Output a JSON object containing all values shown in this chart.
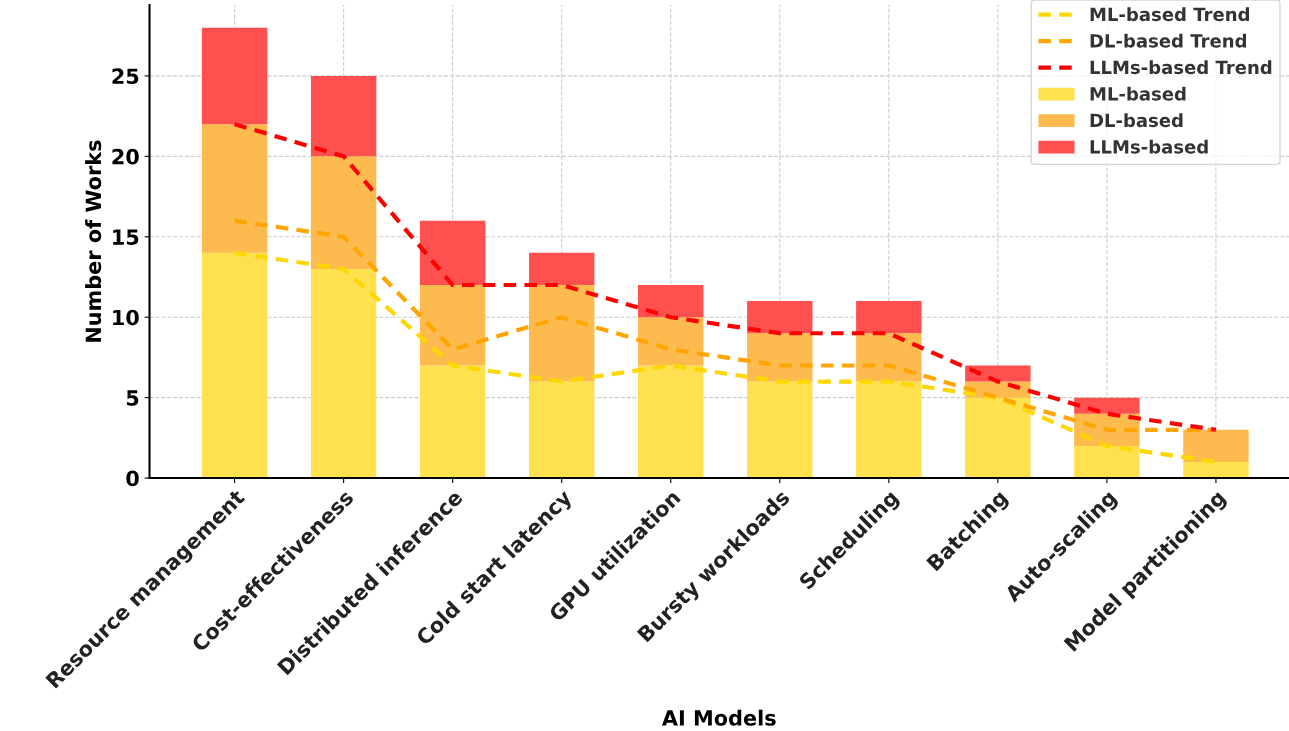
{
  "chart_data": {
    "type": "bar",
    "stacked": true,
    "xlabel": "AI Models",
    "ylabel": "Number of Works",
    "categories": [
      "Resource management",
      "Cost-effectiveness",
      "Distributed inference",
      "Cold start latency",
      "GPU utilization",
      "Bursty workloads",
      "Scheduling",
      "Batching",
      "Auto-scaling",
      "Model partitioning"
    ],
    "series": [
      {
        "name": "ML-based",
        "color": "#ffe04f",
        "values": [
          14,
          13,
          7,
          6,
          7,
          6,
          6,
          5,
          2,
          1
        ]
      },
      {
        "name": "DL-based",
        "color": "#fdbb4f",
        "values": [
          8,
          7,
          5,
          6,
          3,
          3,
          3,
          1,
          2,
          2
        ]
      },
      {
        "name": "LLMs-based",
        "color": "#ff5050",
        "values": [
          6,
          5,
          4,
          2,
          2,
          2,
          2,
          1,
          1,
          0
        ]
      },
      {
        "name": "ML-based Trend",
        "type": "line",
        "color": "#ffd700",
        "line_style": "dashed",
        "values": [
          14,
          13,
          7,
          6,
          7,
          6,
          6,
          5,
          2,
          1
        ]
      },
      {
        "name": "DL-based Trend",
        "type": "line",
        "color": "#ffa500",
        "line_style": "dashed",
        "values": [
          16,
          15,
          8,
          10,
          8,
          7,
          7,
          5,
          3,
          3
        ]
      },
      {
        "name": "LLMs-based Trend",
        "type": "line",
        "color": "#ff0000",
        "line_style": "dashed",
        "values": [
          22,
          20,
          12,
          12,
          10,
          9,
          9,
          6,
          4,
          3
        ]
      }
    ],
    "ylim": [
      0,
      29.4
    ],
    "yticks": [
      0,
      5,
      10,
      15,
      20,
      25
    ],
    "grid": true,
    "legend": "top right"
  }
}
